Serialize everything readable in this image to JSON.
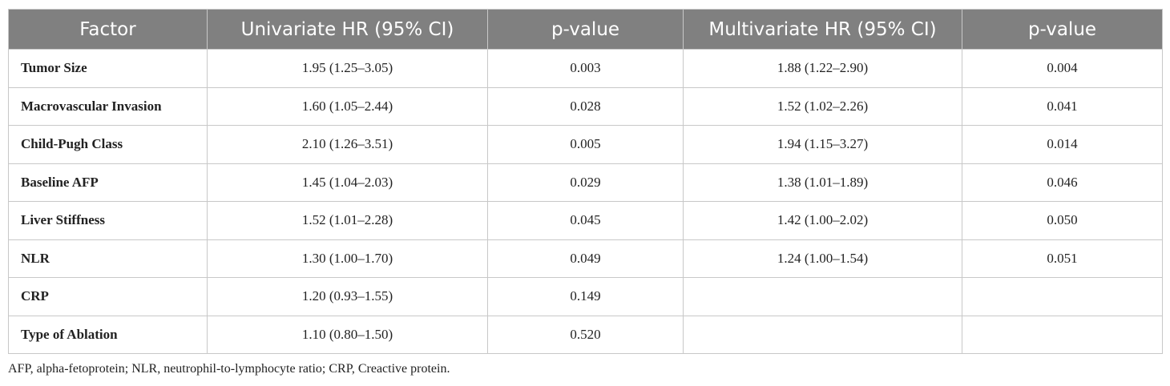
{
  "table": {
    "header": [
      "Factor",
      "Univariate HR (95% CI)",
      "p-value",
      "Multivariate HR (95% CI)",
      "p-value"
    ],
    "rows": [
      [
        "Tumor Size",
        "1.95 (1.25–3.05)",
        "0.003",
        "1.88 (1.22–2.90)",
        "0.004"
      ],
      [
        "Macrovascular Invasion",
        "1.60 (1.05–2.44)",
        "0.028",
        "1.52 (1.02–2.26)",
        "0.041"
      ],
      [
        "Child-Pugh Class",
        "2.10 (1.26–3.51)",
        "0.005",
        "1.94 (1.15–3.27)",
        "0.014"
      ],
      [
        "Baseline AFP",
        "1.45 (1.04–2.03)",
        "0.029",
        "1.38 (1.01–1.89)",
        "0.046"
      ],
      [
        "Liver Stiffness",
        "1.52 (1.01–2.28)",
        "0.045",
        "1.42 (1.00–2.02)",
        "0.050"
      ],
      [
        "NLR",
        "1.30 (1.00–1.70)",
        "0.049",
        "1.24 (1.00–1.54)",
        "0.051"
      ],
      [
        "CRP",
        "1.20 (0.93–1.55)",
        "0.149"
      ],
      [
        "Type of Ablation",
        "1.10 (0.80–1.50)",
        "0.520"
      ]
    ]
  },
  "footnote": "AFP, alpha-fetoprotein; NLR, neutrophil-to-lymphocyte ratio; CRP, Creactive protein."
}
